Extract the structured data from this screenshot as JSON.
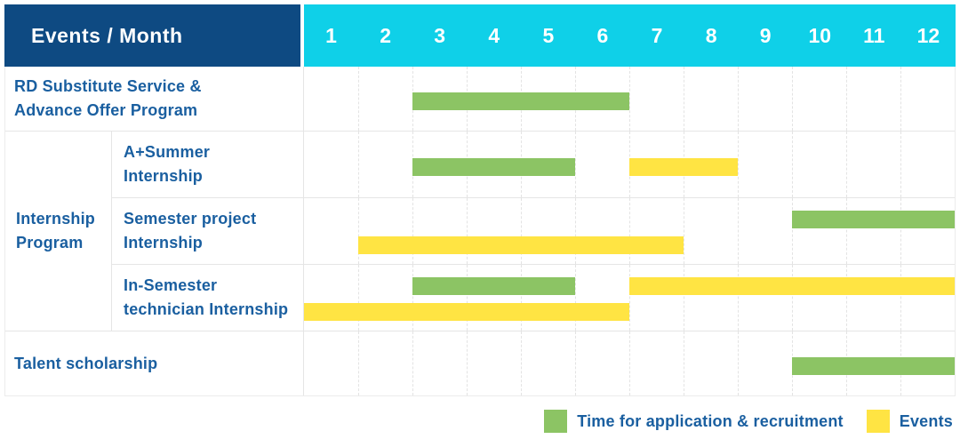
{
  "palette": {
    "header_bg": "#0e4a82",
    "months_bg": "#0fd0e8",
    "green": "#8cc464",
    "yellow": "#ffe443",
    "text_blue": "#1a5fa0",
    "grid": "#e5e5e5"
  },
  "chart_data": {
    "type": "bar",
    "subtype": "gantt-schedule",
    "title": "Events / Month",
    "x": {
      "unit": "month",
      "range": [
        1,
        12
      ],
      "ticks": [
        "1",
        "2",
        "3",
        "4",
        "5",
        "6",
        "7",
        "8",
        "9",
        "10",
        "11",
        "12"
      ]
    },
    "series_legend": [
      {
        "key": "green",
        "label": "Time for application & recruitment",
        "color": "#8cc464"
      },
      {
        "key": "yellow",
        "label": "Events",
        "color": "#ffe443"
      }
    ],
    "rows": [
      {
        "full_label": "RD Substitute Service & Advance Offer Program",
        "label_lines": [
          "RD Substitute Service &",
          "Advance Offer Program"
        ],
        "bars": [
          {
            "key": "green",
            "start": 3,
            "end": 6,
            "lane": "center"
          }
        ]
      },
      {
        "group_full_label": "Internship Program",
        "group_label_lines": [
          "Internship",
          "Program"
        ],
        "children": [
          {
            "full_label": "A+Summer Internship",
            "label_lines": [
              "A+Summer",
              "Internship"
            ],
            "bars": [
              {
                "key": "green",
                "start": 3,
                "end": 5,
                "lane": "center"
              },
              {
                "key": "yellow",
                "start": 7,
                "end": 8,
                "lane": "center"
              }
            ]
          },
          {
            "full_label": "Semester project Internship",
            "label_lines": [
              "Semester project",
              "Internship"
            ],
            "bars": [
              {
                "key": "green",
                "start": 10,
                "end": 12,
                "lane": "top"
              },
              {
                "key": "yellow",
                "start": 2,
                "end": 7,
                "lane": "bottom"
              }
            ]
          },
          {
            "full_label": "In-Semester technician Internship",
            "label_lines": [
              "In-Semester",
              "technician Internship"
            ],
            "bars": [
              {
                "key": "green",
                "start": 3,
                "end": 5,
                "lane": "top"
              },
              {
                "key": "yellow",
                "start": 7,
                "end": 12,
                "lane": "top"
              },
              {
                "key": "yellow",
                "start": 1,
                "end": 6,
                "lane": "bottom"
              }
            ]
          }
        ]
      },
      {
        "full_label": "Talent scholarship",
        "label_lines": [
          "Talent scholarship"
        ],
        "bars": [
          {
            "key": "green",
            "start": 10,
            "end": 12,
            "lane": "center"
          }
        ]
      }
    ]
  }
}
